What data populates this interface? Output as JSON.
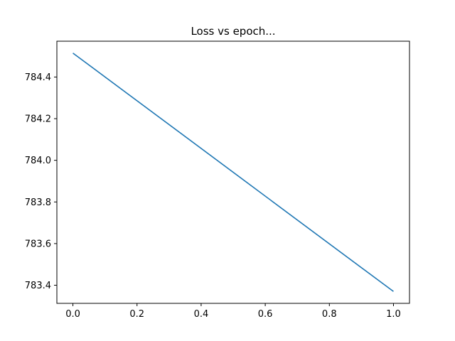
{
  "chart_data": {
    "type": "line",
    "title": "Loss vs epoch...",
    "xlabel": "",
    "ylabel": "",
    "x": [
      0.0,
      1.0
    ],
    "series": [
      {
        "values": [
          784.515,
          783.37
        ],
        "color": "#1f77b4"
      }
    ],
    "xlim": [
      -0.05,
      1.05
    ],
    "ylim": [
      783.313,
      784.572
    ],
    "xticks": [
      0.0,
      0.2,
      0.4,
      0.6,
      0.8,
      1.0
    ],
    "xtick_labels": [
      "0.0",
      "0.2",
      "0.4",
      "0.6",
      "0.8",
      "1.0"
    ],
    "yticks": [
      783.4,
      783.6,
      783.8,
      784.0,
      784.2,
      784.4
    ],
    "ytick_labels": [
      "783.4",
      "783.6",
      "783.8",
      "784.0",
      "784.2",
      "784.4"
    ],
    "grid": false,
    "legend": "none"
  }
}
